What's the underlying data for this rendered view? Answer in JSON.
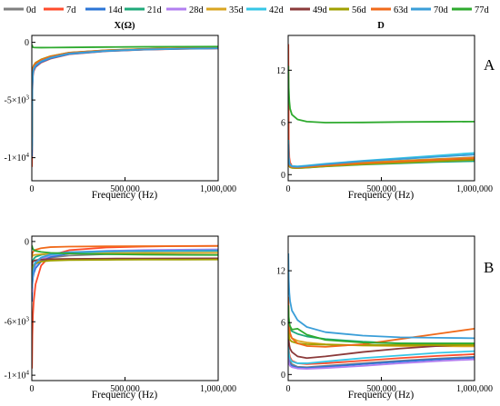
{
  "legend": {
    "items": [
      {
        "name": "0d",
        "color": "#7f7f7f"
      },
      {
        "name": "7d",
        "color": "#ff4b2b"
      },
      {
        "name": "14d",
        "color": "#2b74d6"
      },
      {
        "name": "21d",
        "color": "#1fa97a"
      },
      {
        "name": "28d",
        "color": "#b27ff0"
      },
      {
        "name": "35d",
        "color": "#d9a520"
      },
      {
        "name": "42d",
        "color": "#35c6e6"
      },
      {
        "name": "49d",
        "color": "#8b3a3a"
      },
      {
        "name": "56d",
        "color": "#a0a000"
      },
      {
        "name": "63d",
        "color": "#f06a1a"
      },
      {
        "name": "70d",
        "color": "#3a9ed8"
      },
      {
        "name": "77d",
        "color": "#2eaa2e"
      }
    ]
  },
  "row_labels": [
    "A",
    "B"
  ],
  "chart_data": [
    {
      "id": "A-X",
      "type": "line",
      "title": "X(Ω)",
      "xlabel": "Frequency (Hz)",
      "ylabel": "",
      "x_unit_max": 1000000,
      "xlim": [
        0,
        1000000
      ],
      "ylim": [
        -12000,
        600
      ],
      "x_ticks": [
        {
          "v": 0,
          "label": "0"
        },
        {
          "v": 500000,
          "label": "500,000"
        },
        {
          "v": 1000000,
          "label": "1,000,000"
        }
      ],
      "y_ticks": [
        {
          "v": 0,
          "label": "0"
        },
        {
          "v": -5000,
          "label": "-5×10³"
        },
        {
          "v": -10000,
          "label": "-1×10⁴"
        }
      ],
      "x": [
        1000,
        3000,
        6000,
        10000,
        20000,
        50000,
        100000,
        200000,
        400000,
        600000,
        800000,
        1000000
      ],
      "series": [
        {
          "name": "0d",
          "values": [
            -9600,
            -3500,
            -2600,
            -2350,
            -2050,
            -1700,
            -1380,
            -1000,
            -760,
            -630,
            -560,
            -520
          ]
        },
        {
          "name": "7d",
          "values": [
            -10800,
            -4200,
            -2900,
            -2500,
            -2150,
            -1760,
            -1420,
            -1030,
            -770,
            -640,
            -570,
            -530
          ]
        },
        {
          "name": "14d",
          "values": [
            -9900,
            -3800,
            -2750,
            -2400,
            -2100,
            -1720,
            -1390,
            -1010,
            -760,
            -630,
            -560,
            -520
          ]
        },
        {
          "name": "21d",
          "values": [
            -9000,
            -3300,
            -2500,
            -2250,
            -1950,
            -1620,
            -1300,
            -950,
            -720,
            -600,
            -540,
            -500
          ]
        },
        {
          "name": "28d",
          "values": [
            -8800,
            -3200,
            -2450,
            -2200,
            -1920,
            -1600,
            -1280,
            -940,
            -710,
            -600,
            -530,
            -500
          ]
        },
        {
          "name": "35d",
          "values": [
            -8400,
            -3000,
            -2350,
            -2100,
            -1850,
            -1550,
            -1250,
            -920,
            -700,
            -590,
            -520,
            -490
          ]
        },
        {
          "name": "42d",
          "values": [
            -8600,
            -3100,
            -2400,
            -2150,
            -1880,
            -1570,
            -1260,
            -930,
            -700,
            -590,
            -525,
            -495
          ]
        },
        {
          "name": "49d",
          "values": [
            -8200,
            -2900,
            -2300,
            -2050,
            -1800,
            -1500,
            -1220,
            -900,
            -690,
            -580,
            -515,
            -485
          ]
        },
        {
          "name": "56d",
          "values": [
            -8000,
            -2800,
            -2250,
            -2000,
            -1760,
            -1480,
            -1200,
            -890,
            -680,
            -575,
            -510,
            -480
          ]
        },
        {
          "name": "63d",
          "values": [
            -8300,
            -2950,
            -2320,
            -2070,
            -1820,
            -1520,
            -1230,
            -910,
            -695,
            -585,
            -518,
            -488
          ]
        },
        {
          "name": "70d",
          "values": [
            -9300,
            -3600,
            -2650,
            -2300,
            -2000,
            -1650,
            -1330,
            -970,
            -735,
            -615,
            -550,
            -510
          ]
        },
        {
          "name": "77d",
          "values": [
            -200,
            -350,
            -420,
            -440,
            -455,
            -460,
            -455,
            -440,
            -410,
            -390,
            -375,
            -365
          ]
        }
      ]
    },
    {
      "id": "A-D",
      "type": "line",
      "title": "D",
      "xlabel": "Frequency (Hz)",
      "ylabel": "",
      "xlim": [
        0,
        1000000
      ],
      "ylim": [
        -0.7,
        16
      ],
      "x_ticks": [
        {
          "v": 0,
          "label": "0"
        },
        {
          "v": 500000,
          "label": "500,000"
        },
        {
          "v": 1000000,
          "label": "1,000,000"
        }
      ],
      "y_ticks": [
        {
          "v": 0,
          "label": "0"
        },
        {
          "v": 6,
          "label": "6"
        },
        {
          "v": 12,
          "label": "12"
        }
      ],
      "x": [
        1000,
        3000,
        6000,
        10000,
        20000,
        50000,
        100000,
        200000,
        400000,
        600000,
        800000,
        1000000
      ],
      "series": [
        {
          "name": "0d",
          "values": [
            3.2,
            1.6,
            1.2,
            1.0,
            0.9,
            0.85,
            0.95,
            1.1,
            1.4,
            1.6,
            1.8,
            2.0
          ]
        },
        {
          "name": "7d",
          "values": [
            15.0,
            4.0,
            2.0,
            1.4,
            1.0,
            0.85,
            0.9,
            1.05,
            1.35,
            1.55,
            1.75,
            1.95
          ]
        },
        {
          "name": "14d",
          "values": [
            3.0,
            1.5,
            1.1,
            0.95,
            0.85,
            0.8,
            0.9,
            1.05,
            1.3,
            1.5,
            1.7,
            1.85
          ]
        },
        {
          "name": "21d",
          "values": [
            2.8,
            1.4,
            1.05,
            0.9,
            0.8,
            0.75,
            0.8,
            0.95,
            1.15,
            1.3,
            1.45,
            1.55
          ]
        },
        {
          "name": "28d",
          "values": [
            2.9,
            1.45,
            1.1,
            0.95,
            0.85,
            0.8,
            0.88,
            1.0,
            1.25,
            1.45,
            1.6,
            1.75
          ]
        },
        {
          "name": "35d",
          "values": [
            3.1,
            1.55,
            1.15,
            1.0,
            0.9,
            0.85,
            0.95,
            1.1,
            1.38,
            1.58,
            1.78,
            1.95
          ]
        },
        {
          "name": "42d",
          "values": [
            4.0,
            2.0,
            1.4,
            1.15,
            1.0,
            0.95,
            1.05,
            1.25,
            1.6,
            1.9,
            2.2,
            2.5
          ]
        },
        {
          "name": "49d",
          "values": [
            2.7,
            1.35,
            1.0,
            0.88,
            0.8,
            0.78,
            0.85,
            1.0,
            1.25,
            1.45,
            1.65,
            1.8
          ]
        },
        {
          "name": "56d",
          "values": [
            2.6,
            1.3,
            0.98,
            0.85,
            0.78,
            0.75,
            0.82,
            0.96,
            1.2,
            1.38,
            1.55,
            1.7
          ]
        },
        {
          "name": "63d",
          "values": [
            3.0,
            1.5,
            1.12,
            0.98,
            0.88,
            0.82,
            0.9,
            1.05,
            1.32,
            1.52,
            1.72,
            1.9
          ]
        },
        {
          "name": "70d",
          "values": [
            3.5,
            1.8,
            1.3,
            1.1,
            0.95,
            0.9,
            1.0,
            1.2,
            1.55,
            1.8,
            2.05,
            2.3
          ]
        },
        {
          "name": "77d",
          "values": [
            12.5,
            10.0,
            8.5,
            7.6,
            6.9,
            6.35,
            6.1,
            5.98,
            6.0,
            6.05,
            6.08,
            6.1
          ]
        }
      ]
    },
    {
      "id": "B-X",
      "type": "line",
      "title": "",
      "xlabel": "Frequency (Hz)",
      "ylabel": "",
      "xlim": [
        0,
        1000000
      ],
      "ylim": [
        -10400,
        400
      ],
      "x_ticks": [
        {
          "v": 0,
          "label": "0"
        },
        {
          "v": 500000,
          "label": "500,000"
        },
        {
          "v": 1000000,
          "label": "1,000,000"
        }
      ],
      "y_ticks": [
        {
          "v": 0,
          "label": "0"
        },
        {
          "v": -6000,
          "label": "-6×10³"
        },
        {
          "v": -10000,
          "label": "-1×10⁴"
        }
      ],
      "x": [
        1000,
        3000,
        6000,
        10000,
        20000,
        50000,
        100000,
        200000,
        400000,
        600000,
        800000,
        1000000
      ],
      "series": [
        {
          "name": "0d",
          "values": [
            -3000,
            -2500,
            -2200,
            -2000,
            -1700,
            -1400,
            -1200,
            -1050,
            -950,
            -900,
            -870,
            -850
          ]
        },
        {
          "name": "7d",
          "values": [
            -9500,
            -7000,
            -5500,
            -4500,
            -3200,
            -1800,
            -1050,
            -650,
            -450,
            -380,
            -340,
            -320
          ]
        },
        {
          "name": "14d",
          "values": [
            -4500,
            -3200,
            -2700,
            -2400,
            -2000,
            -1500,
            -1150,
            -900,
            -760,
            -700,
            -670,
            -650
          ]
        },
        {
          "name": "21d",
          "values": [
            -2000,
            -1600,
            -1400,
            -1300,
            -1150,
            -1000,
            -900,
            -820,
            -760,
            -730,
            -710,
            -700
          ]
        },
        {
          "name": "28d",
          "values": [
            -3800,
            -2900,
            -2400,
            -2100,
            -1750,
            -1350,
            -1050,
            -830,
            -700,
            -640,
            -610,
            -590
          ]
        },
        {
          "name": "35d",
          "values": [
            -1200,
            -1100,
            -1050,
            -1020,
            -990,
            -950,
            -920,
            -890,
            -870,
            -860,
            -855,
            -850
          ]
        },
        {
          "name": "42d",
          "values": [
            -3000,
            -2400,
            -2000,
            -1800,
            -1500,
            -1200,
            -1000,
            -850,
            -750,
            -700,
            -680,
            -660
          ]
        },
        {
          "name": "49d",
          "values": [
            -1800,
            -1600,
            -1500,
            -1450,
            -1400,
            -1350,
            -1320,
            -1300,
            -1280,
            -1270,
            -1265,
            -1260
          ]
        },
        {
          "name": "56d",
          "values": [
            -2300,
            -2100,
            -1900,
            -1800,
            -1650,
            -1500,
            -1430,
            -1390,
            -1370,
            -1360,
            -1355,
            -1350
          ]
        },
        {
          "name": "63d",
          "values": [
            -1000,
            -900,
            -800,
            -720,
            -620,
            -500,
            -420,
            -380,
            -360,
            -350,
            -345,
            -340
          ]
        },
        {
          "name": "70d",
          "values": [
            -3500,
            -2800,
            -2300,
            -2000,
            -1600,
            -1200,
            -950,
            -800,
            -720,
            -690,
            -670,
            -660
          ]
        },
        {
          "name": "77d",
          "values": [
            -300,
            -450,
            -550,
            -620,
            -700,
            -780,
            -850,
            -900,
            -950,
            -980,
            -1000,
            -1010
          ]
        }
      ]
    },
    {
      "id": "B-D",
      "type": "line",
      "title": "",
      "xlabel": "Frequency (Hz)",
      "ylabel": "",
      "xlim": [
        0,
        1000000
      ],
      "ylim": [
        -0.7,
        16
      ],
      "x_ticks": [
        {
          "v": 0,
          "label": "0"
        },
        {
          "v": 500000,
          "label": "500,000"
        },
        {
          "v": 1000000,
          "label": "1,000,000"
        }
      ],
      "y_ticks": [
        {
          "v": 0,
          "label": "0"
        },
        {
          "v": 6,
          "label": "6"
        },
        {
          "v": 12,
          "label": "12"
        }
      ],
      "x": [
        1000,
        3000,
        6000,
        10000,
        20000,
        50000,
        100000,
        200000,
        400000,
        600000,
        800000,
        1000000
      ],
      "series": [
        {
          "name": "0d",
          "values": [
            3.0,
            2.2,
            1.8,
            1.5,
            1.2,
            0.9,
            0.85,
            1.0,
            1.3,
            1.6,
            1.85,
            2.05
          ]
        },
        {
          "name": "7d",
          "values": [
            4.0,
            3.0,
            2.4,
            2.0,
            1.6,
            1.3,
            1.2,
            1.3,
            1.6,
            1.9,
            2.15,
            2.35
          ]
        },
        {
          "name": "14d",
          "values": [
            2.5,
            1.8,
            1.4,
            1.2,
            1.0,
            0.8,
            0.75,
            0.9,
            1.2,
            1.5,
            1.75,
            1.95
          ]
        },
        {
          "name": "21d",
          "values": [
            7.0,
            6.0,
            5.6,
            5.3,
            5.0,
            4.7,
            4.4,
            4.1,
            3.8,
            3.6,
            3.5,
            3.45
          ]
        },
        {
          "name": "28d",
          "values": [
            2.2,
            1.5,
            1.2,
            1.0,
            0.85,
            0.7,
            0.65,
            0.75,
            1.0,
            1.3,
            1.55,
            1.75
          ]
        },
        {
          "name": "35d",
          "values": [
            6.0,
            5.2,
            4.8,
            4.5,
            4.2,
            3.9,
            3.7,
            3.5,
            3.35,
            3.3,
            3.28,
            3.25
          ]
        },
        {
          "name": "42d",
          "values": [
            3.5,
            2.6,
            2.1,
            1.8,
            1.5,
            1.3,
            1.3,
            1.5,
            1.9,
            2.2,
            2.5,
            2.7
          ]
        },
        {
          "name": "49d",
          "values": [
            5.0,
            4.0,
            3.4,
            3.0,
            2.6,
            2.1,
            1.9,
            2.1,
            2.6,
            3.0,
            3.3,
            3.5
          ]
        },
        {
          "name": "56d",
          "values": [
            5.5,
            4.6,
            4.2,
            4.0,
            3.8,
            3.6,
            3.5,
            3.45,
            3.4,
            3.4,
            3.4,
            3.4
          ]
        },
        {
          "name": "63d",
          "values": [
            9.0,
            6.5,
            5.4,
            4.8,
            4.2,
            3.6,
            3.3,
            3.2,
            3.5,
            4.1,
            4.7,
            5.3
          ]
        },
        {
          "name": "70d",
          "values": [
            14.0,
            11.0,
            9.5,
            8.5,
            7.4,
            6.3,
            5.5,
            4.9,
            4.5,
            4.3,
            4.25,
            4.2
          ]
        },
        {
          "name": "77d",
          "values": [
            8.0,
            6.7,
            6.0,
            5.6,
            5.2,
            5.3,
            4.6,
            4.0,
            3.7,
            3.6,
            3.6,
            3.6
          ]
        }
      ]
    }
  ]
}
